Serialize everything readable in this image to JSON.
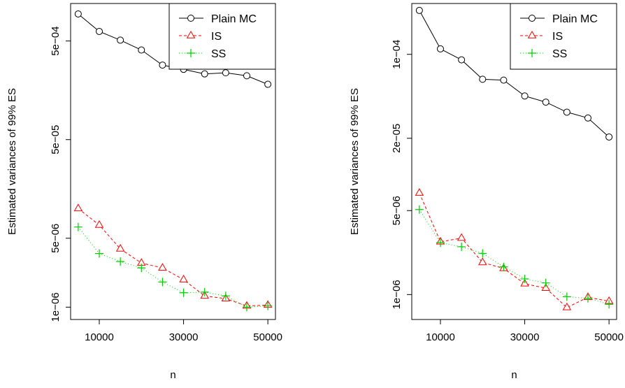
{
  "chart_data": [
    {
      "type": "line",
      "title": "",
      "xlabel": "n",
      "ylabel": "Estimated variances of 99% ES",
      "yscale": "log",
      "xlim": [
        3200,
        51800
      ],
      "ylim": [
        7.5e-07,
        0.0012
      ],
      "x_ticks": [
        10000,
        30000,
        50000
      ],
      "x_tick_labels": [
        "10000",
        "30000",
        "50000"
      ],
      "y_ticks": [
        1e-06,
        5e-06,
        5e-05,
        0.0005
      ],
      "y_tick_labels": [
        "1e−06",
        "5e−06",
        "5e−05",
        "5e−04"
      ],
      "grid": false,
      "legend_position": "top-right",
      "x": [
        5000,
        10000,
        15000,
        20000,
        25000,
        30000,
        35000,
        40000,
        45000,
        50000
      ],
      "series": [
        {
          "name": "Plain MC",
          "color": "#000000",
          "marker": "circle",
          "dash": "solid",
          "values": [
            0.00094,
            0.000625,
            0.00051,
            0.000405,
            0.000285,
            0.000258,
            0.000232,
            0.000238,
            0.000222,
            0.000182
          ]
        },
        {
          "name": "IS",
          "color": "#ff0000",
          "marker": "triangle",
          "dash": "dashed",
          "values": [
            1e-05,
            6.8e-06,
            3.9e-06,
            2.8e-06,
            2.5e-06,
            1.9e-06,
            1.3e-06,
            1.22e-06,
            1.03e-06,
            1.05e-06
          ]
        },
        {
          "name": "SS",
          "color": "#00cc00",
          "marker": "plus",
          "dash": "dotted",
          "values": [
            6.5e-06,
            3.5e-06,
            2.9e-06,
            2.5e-06,
            1.8e-06,
            1.4e-06,
            1.42e-06,
            1.3e-06,
            1e-06,
            1.03e-06
          ]
        }
      ]
    },
    {
      "type": "line",
      "title": "",
      "xlabel": "n",
      "ylabel": "Estimated variances of 99% ES",
      "yscale": "log",
      "xlim": [
        3200,
        51800
      ],
      "ylim": [
        6.2e-07,
        0.000265
      ],
      "x_ticks": [
        10000,
        30000,
        50000
      ],
      "x_tick_labels": [
        "10000",
        "30000",
        "50000"
      ],
      "y_ticks": [
        1e-06,
        5e-06,
        2e-05,
        0.0001
      ],
      "y_tick_labels": [
        "1e−06",
        "5e−06",
        "2e−05",
        "1e−04"
      ],
      "grid": false,
      "legend_position": "top-right",
      "x": [
        5000,
        10000,
        15000,
        20000,
        25000,
        30000,
        35000,
        40000,
        45000,
        50000
      ],
      "series": [
        {
          "name": "Plain MC",
          "color": "#000000",
          "marker": "circle",
          "dash": "solid",
          "values": [
            0.000232,
            0.000111,
            9e-05,
            6.2e-05,
            6.1e-05,
            4.5e-05,
            4e-05,
            3.3e-05,
            2.95e-05,
            2.05e-05
          ]
        },
        {
          "name": "IS",
          "color": "#ff0000",
          "marker": "triangle",
          "dash": "dashed",
          "values": [
            7e-06,
            2.75e-06,
            2.95e-06,
            1.85e-06,
            1.65e-06,
            1.23e-06,
            1.13e-06,
            7.8e-07,
            9.5e-07,
            8.8e-07
          ]
        },
        {
          "name": "SS",
          "color": "#00cc00",
          "marker": "plus",
          "dash": "dotted",
          "values": [
            5.1e-06,
            2.7e-06,
            2.5e-06,
            2.2e-06,
            1.7e-06,
            1.35e-06,
            1.25e-06,
            9.6e-07,
            9.3e-07,
            8.3e-07
          ]
        }
      ]
    }
  ]
}
